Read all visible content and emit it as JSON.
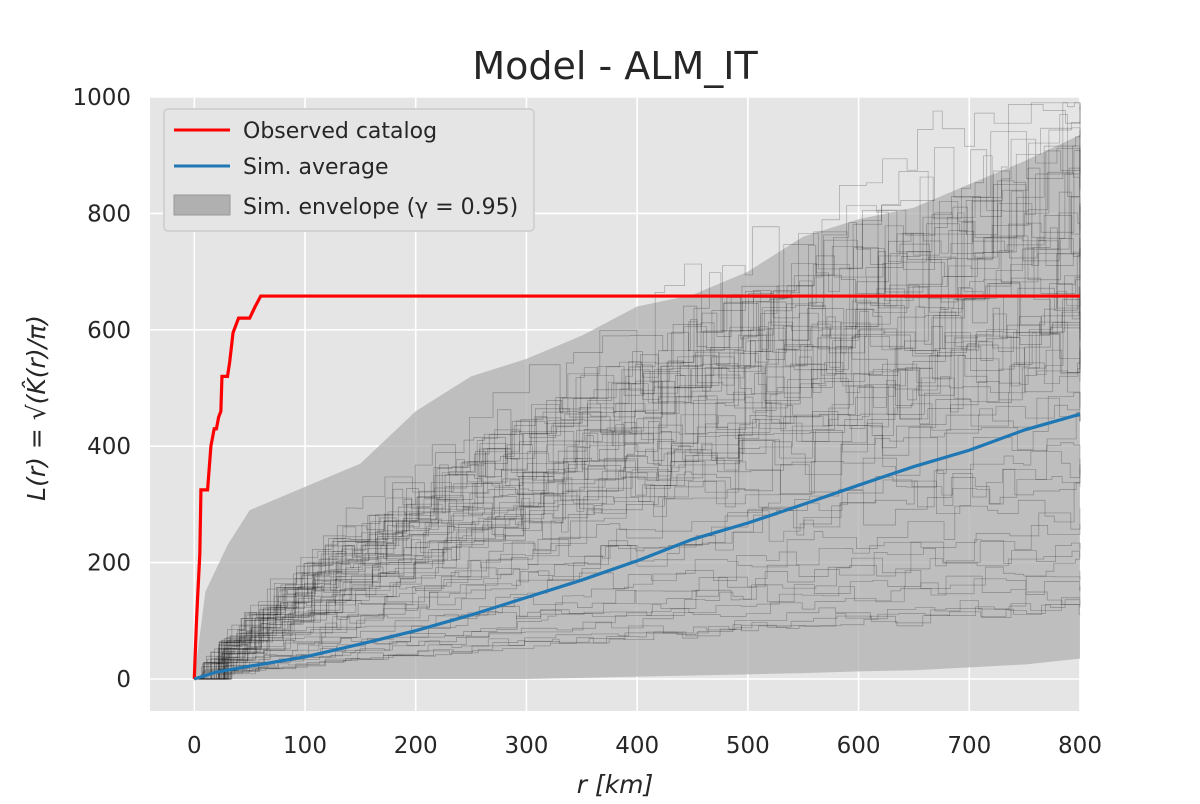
{
  "chart_data": {
    "type": "line",
    "title": "Model - ALM_IT",
    "xlabel": "r  [km]",
    "ylabel": "L(r) = √(K̂(r)/π)",
    "xlim": [
      -40,
      800
    ],
    "ylim": [
      -55,
      1000
    ],
    "xticks": [
      0,
      100,
      200,
      300,
      400,
      500,
      600,
      700,
      800
    ],
    "yticks": [
      0,
      200,
      400,
      600,
      800,
      1000
    ],
    "grid": true,
    "legend_position": "top-left",
    "legend": [
      "Observed catalog",
      "Sim. average",
      "Sim. envelope (γ = 0.95)"
    ],
    "colors": {
      "observed": "#ff0000",
      "average": "#1f77b4",
      "envelope": "#b0b0b0",
      "sims": "#000000",
      "background": "#e5e5e5",
      "grid": "#ffffff"
    },
    "series": [
      {
        "name": "Observed catalog",
        "x": [
          0,
          2,
          3,
          5,
          6,
          8,
          12,
          15,
          18,
          20,
          22,
          24,
          25,
          30,
          32,
          35,
          38,
          40,
          45,
          50,
          55,
          60,
          800
        ],
        "y": [
          0,
          100,
          140,
          215,
          325,
          325,
          325,
          400,
          430,
          430,
          450,
          460,
          520,
          520,
          545,
          595,
          610,
          620,
          620,
          620,
          640,
          658,
          658
        ]
      },
      {
        "name": "Sim. average",
        "x": [
          0,
          20,
          50,
          100,
          150,
          200,
          250,
          300,
          350,
          400,
          450,
          500,
          550,
          600,
          650,
          700,
          750,
          800
        ],
        "y": [
          0,
          12,
          22,
          38,
          60,
          83,
          110,
          140,
          170,
          203,
          240,
          268,
          300,
          333,
          365,
          393,
          428,
          455
        ]
      },
      {
        "name": "Sim. envelope (γ = 0.95)",
        "x": [
          0,
          10,
          30,
          50,
          100,
          150,
          200,
          250,
          300,
          350,
          400,
          450,
          500,
          550,
          600,
          650,
          700,
          750,
          800
        ],
        "lower": [
          0,
          0,
          0,
          0,
          0,
          0,
          0,
          0,
          0,
          2,
          4,
          6,
          8,
          10,
          13,
          15,
          20,
          25,
          35
        ],
        "upper": [
          0,
          150,
          230,
          290,
          330,
          370,
          460,
          520,
          550,
          590,
          640,
          660,
          700,
          760,
          790,
          810,
          850,
          890,
          935
        ]
      }
    ]
  }
}
